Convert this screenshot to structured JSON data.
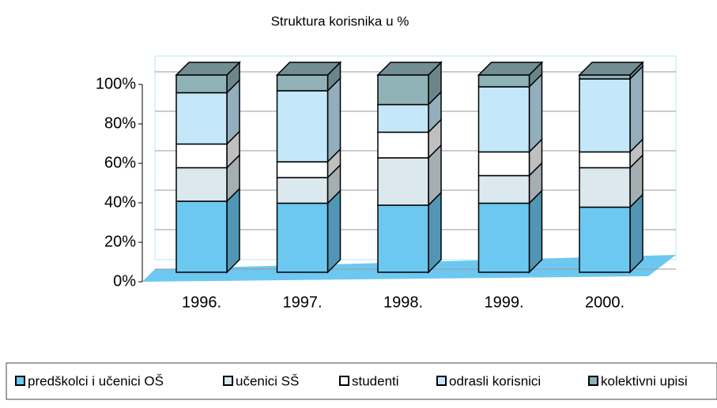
{
  "chart_data": {
    "type": "bar",
    "stacked": true,
    "title": "Struktura korisnika u %",
    "categories": [
      "1996.",
      "1997.",
      "1998.",
      "1999.",
      "2000."
    ],
    "series": [
      {
        "name": "predškolci i učenici OŠ",
        "color": "#6cc8f0",
        "values": [
          36,
          35,
          34,
          35,
          33
        ]
      },
      {
        "name": "učenici SŠ",
        "color": "#dbe8ee",
        "values": [
          17,
          13,
          24,
          14,
          20
        ]
      },
      {
        "name": "studenti",
        "color": "#ffffff",
        "values": [
          12,
          8,
          13,
          12,
          8
        ]
      },
      {
        "name": "odrasli korisnici",
        "color": "#c4e8fa",
        "values": [
          26,
          36,
          14,
          33,
          37
        ]
      },
      {
        "name": "kolektivni upisi",
        "color": "#8fb2b6",
        "values": [
          9,
          8,
          15,
          6,
          2
        ]
      }
    ],
    "ylim": [
      0,
      100
    ],
    "yticks": [
      {
        "value": 0,
        "label": "0%"
      },
      {
        "value": 20,
        "label": "20%"
      },
      {
        "value": 40,
        "label": "40%"
      },
      {
        "value": 60,
        "label": "60%"
      },
      {
        "value": 80,
        "label": "80%"
      },
      {
        "value": 100,
        "label": "100%"
      }
    ],
    "grid": true
  }
}
